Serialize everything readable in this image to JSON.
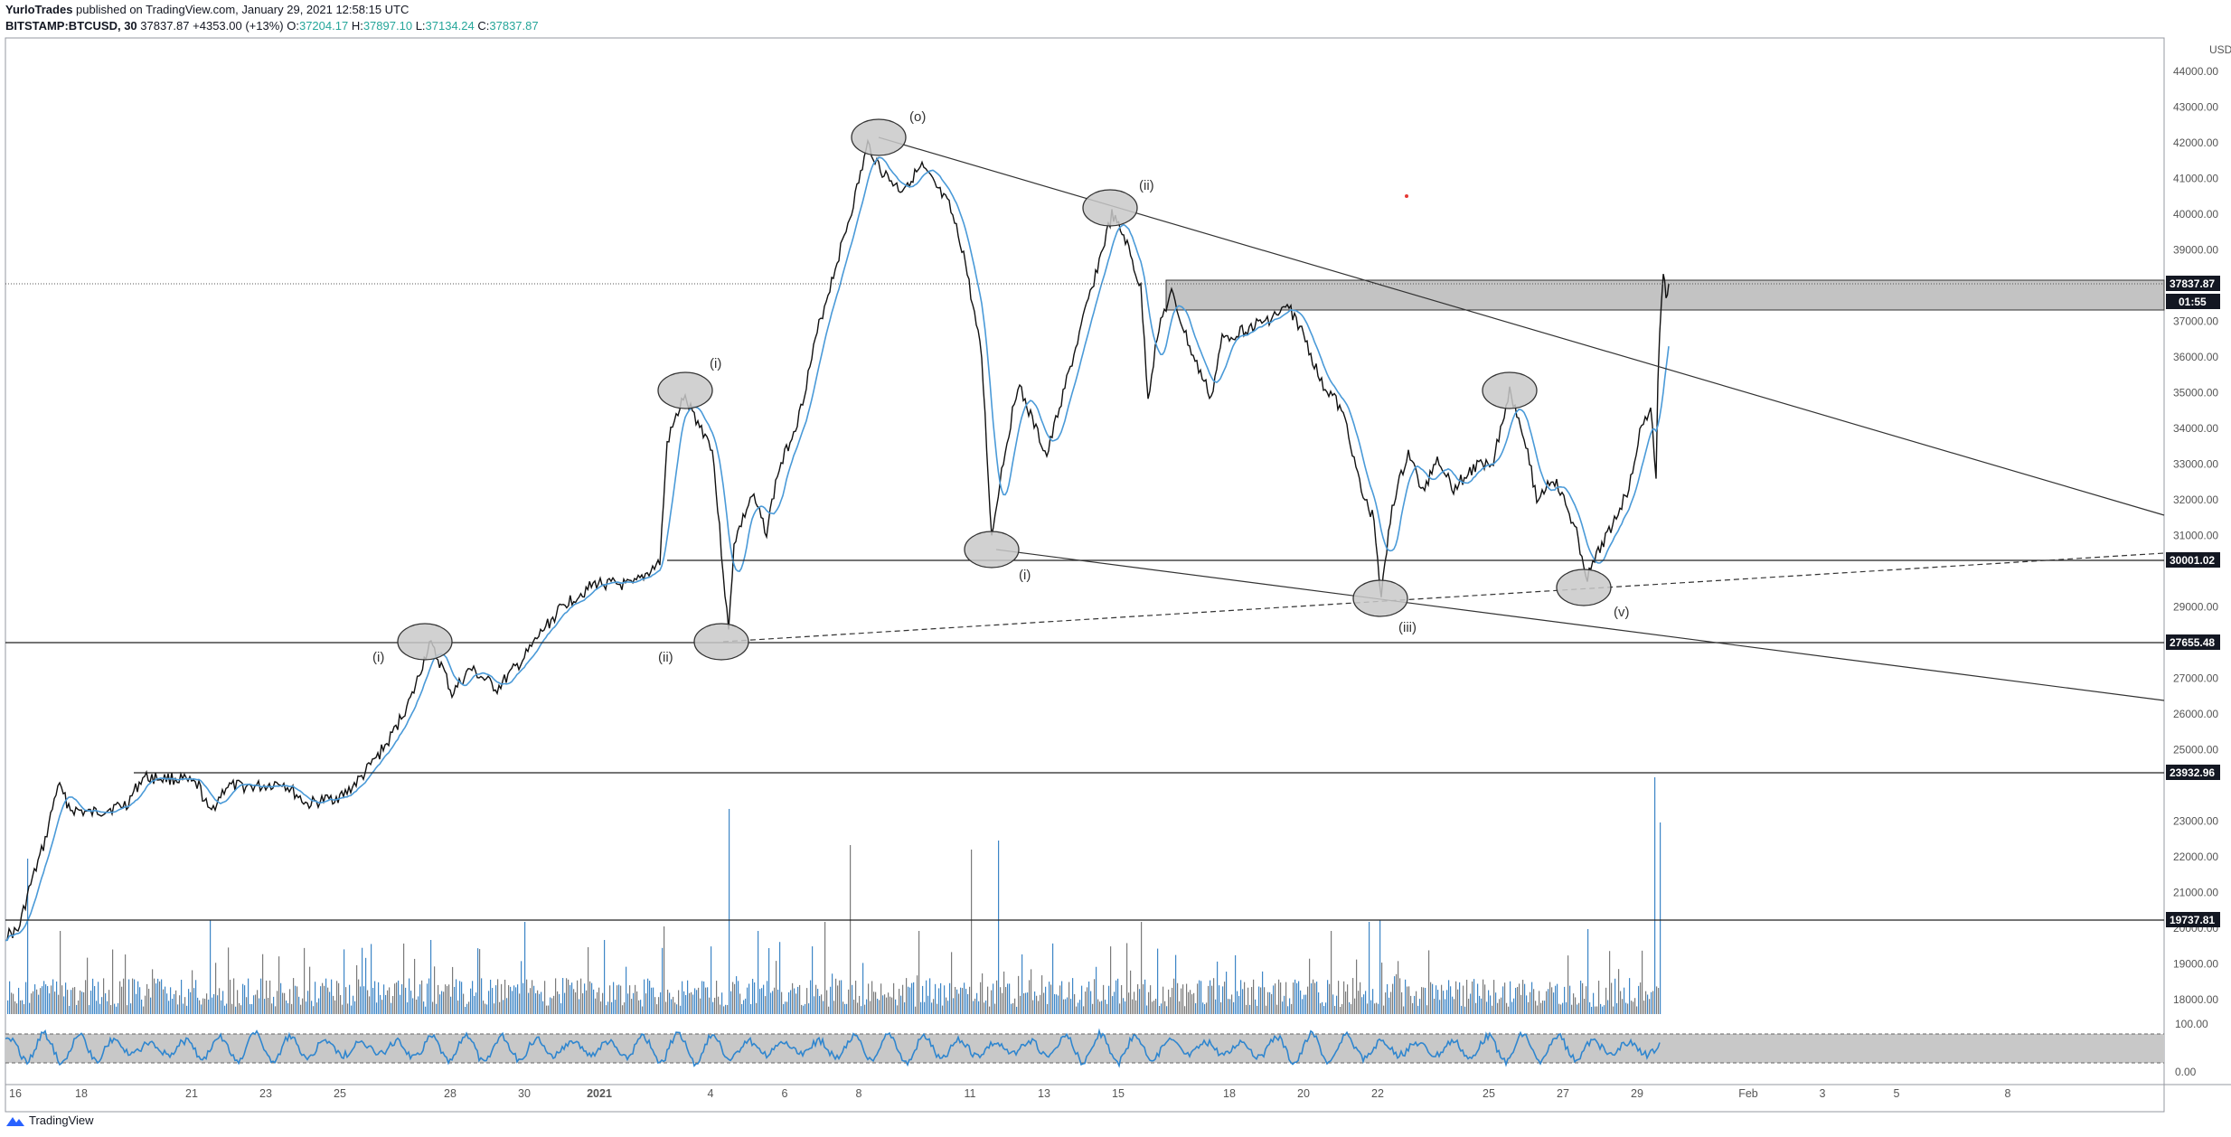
{
  "header": {
    "author": "YurloTrades",
    "published_text": "published on TradingView.com, January 29, 2021 12:58:15 UTC",
    "symbol": "BITSTAMP:BTCUSD, 30",
    "last": "37837.87",
    "change": "+4353.00 (+13%)",
    "o_label": "O:",
    "o": "37204.17",
    "h_label": "H:",
    "h": "37897.10",
    "l_label": "L:",
    "l": "37134.24",
    "c_label": "C:",
    "c": "37837.87"
  },
  "footer": {
    "brand": "TradingView"
  },
  "currency": "USD",
  "price_scale": [
    "44000.00",
    "43000.00",
    "42000.00",
    "41000.00",
    "40000.00",
    "39000.00",
    "37000.00",
    "36000.00",
    "35000.00",
    "34000.00",
    "33000.00",
    "32000.00",
    "31000.00",
    "29000.00",
    "28000.00",
    "27000.00",
    "26000.00",
    "25000.00",
    "23000.00",
    "22000.00",
    "21000.00",
    "20000.00",
    "19000.00",
    "18000.00"
  ],
  "price_tags": {
    "last": "37837.87",
    "countdown": "01:55",
    "level_30001": "30001.02",
    "level_27655": "27655.48",
    "level_23932": "23932.96",
    "level_19737": "19737.81"
  },
  "oscillator_scale": [
    "100.00",
    "0.00"
  ],
  "x_axis": [
    "16",
    "18",
    "21",
    "23",
    "25",
    "28",
    "30",
    "2021",
    "4",
    "6",
    "8",
    "11",
    "13",
    "15",
    "18",
    "20",
    "22",
    "25",
    "27",
    "29",
    "Feb",
    "3",
    "5",
    "8"
  ],
  "wave_labels": [
    "(i)",
    "(ii)",
    "(i)",
    "(o)",
    "(ii)",
    "(i)",
    "(iii)",
    "(v)"
  ],
  "chart_data": {
    "type": "candlestick",
    "symbol": "BITSTAMP:BTCUSD",
    "interval": "30",
    "currency": "USD",
    "ylim": [
      17000,
      44500
    ],
    "last_price": 37837.87,
    "horizontal_levels": [
      37837.87,
      30001.02,
      27655.48,
      23932.96,
      19737.81
    ],
    "resistance_zone": [
      37000,
      37900
    ],
    "approx_closes": [
      {
        "x": "Dec 16",
        "y": 19300
      },
      {
        "x": "Dec 17",
        "y": 23000
      },
      {
        "x": "Dec 19",
        "y": 23300
      },
      {
        "x": "Dec 21",
        "y": 23000
      },
      {
        "x": "Dec 23",
        "y": 23300
      },
      {
        "x": "Dec 25",
        "y": 24000
      },
      {
        "x": "Dec 27",
        "y": 27800
      },
      {
        "x": "Dec 28",
        "y": 26800
      },
      {
        "x": "Dec 30",
        "y": 27800
      },
      {
        "x": "Jan 1",
        "y": 29000
      },
      {
        "x": "Jan 2",
        "y": 29500
      },
      {
        "x": "Jan 3",
        "y": 34200
      },
      {
        "x": "Jan 4",
        "y": 30500
      },
      {
        "x": "Jan 5",
        "y": 32000
      },
      {
        "x": "Jan 6",
        "y": 35500
      },
      {
        "x": "Jan 7",
        "y": 38000
      },
      {
        "x": "Jan 8",
        "y": 41500
      },
      {
        "x": "Jan 10",
        "y": 40000
      },
      {
        "x": "Jan 11",
        "y": 33000
      },
      {
        "x": "Jan 12",
        "y": 32500
      },
      {
        "x": "Jan 13",
        "y": 34500
      },
      {
        "x": "Jan 14",
        "y": 39500
      },
      {
        "x": "Jan 15",
        "y": 37000
      },
      {
        "x": "Jan 16",
        "y": 36500
      },
      {
        "x": "Jan 18",
        "y": 36800
      },
      {
        "x": "Jan 20",
        "y": 35000
      },
      {
        "x": "Jan 21",
        "y": 31500
      },
      {
        "x": "Jan 22",
        "y": 30000
      },
      {
        "x": "Jan 23",
        "y": 32500
      },
      {
        "x": "Jan 25",
        "y": 33000
      },
      {
        "x": "Jan 26",
        "y": 32000
      },
      {
        "x": "Jan 27",
        "y": 30000
      },
      {
        "x": "Jan 28",
        "y": 32000
      },
      {
        "x": "Jan 29",
        "y": 37837.87
      }
    ]
  }
}
